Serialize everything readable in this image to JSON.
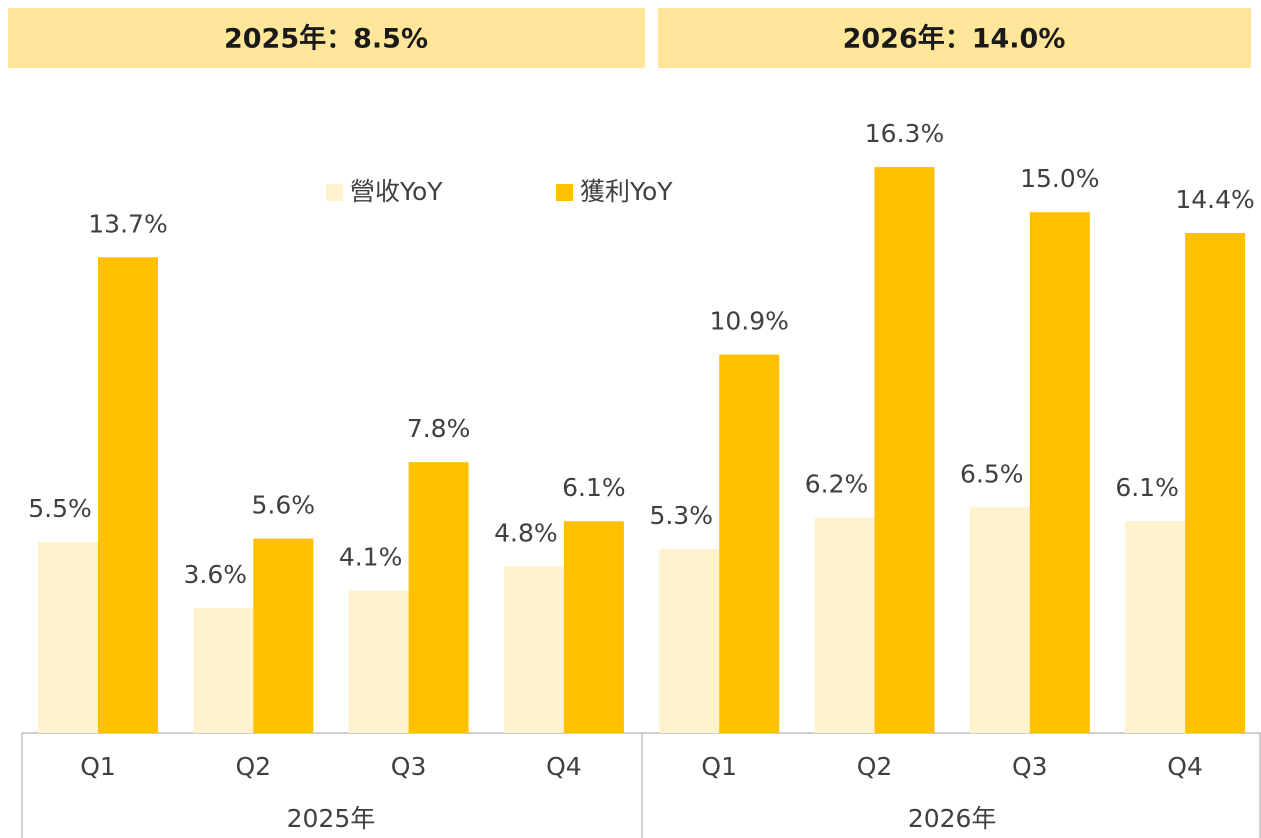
{
  "chart_data": {
    "type": "bar",
    "annotations": [
      "2025年：8.5%",
      "2026年：14.0%"
    ],
    "categories": [
      "Q1",
      "Q2",
      "Q3",
      "Q4",
      "Q1",
      "Q2",
      "Q3",
      "Q4"
    ],
    "category_groups": [
      "2025年",
      "2026年"
    ],
    "series": [
      {
        "name": "營收YoY",
        "color": "#FFF2CC",
        "values": [
          5.5,
          3.6,
          4.1,
          4.8,
          5.3,
          6.2,
          6.5,
          6.1
        ],
        "value_labels": [
          "5.5%",
          "3.6%",
          "4.1%",
          "4.8%",
          "5.3%",
          "6.2%",
          "6.5%",
          "6.1%"
        ]
      },
      {
        "name": "獲利YoY",
        "color": "#FFC000",
        "values": [
          13.7,
          5.6,
          7.8,
          6.1,
          10.9,
          16.3,
          15.0,
          14.4
        ],
        "value_labels": [
          "13.7%",
          "5.6%",
          "7.8%",
          "6.1%",
          "10.9%",
          "16.3%",
          "15.0%",
          "14.4%"
        ]
      }
    ],
    "ylim": [
      0,
      18
    ],
    "legend": "top"
  }
}
